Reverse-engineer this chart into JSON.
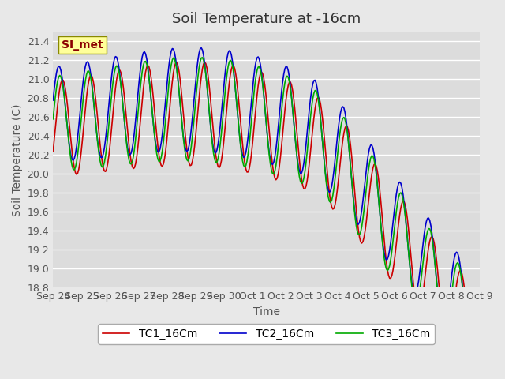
{
  "title": "Soil Temperature at -16cm",
  "xlabel": "Time",
  "ylabel": "Soil Temperature (C)",
  "annotation": "SI_met",
  "ylim": [
    18.8,
    21.5
  ],
  "yticks": [
    18.8,
    19.0,
    19.2,
    19.4,
    19.6,
    19.8,
    20.0,
    20.2,
    20.4,
    20.6,
    20.8,
    21.0,
    21.2,
    21.4
  ],
  "xtick_labels": [
    "Sep 24",
    "Sep 25",
    "Sep 26",
    "Sep 27",
    "Sep 28",
    "Sep 29",
    "Sep 30",
    "Oct 1",
    "Oct 2",
    "Oct 3",
    "Oct 4",
    "Oct 5",
    "Oct 6",
    "Oct 7",
    "Oct 8",
    "Oct 9"
  ],
  "bg_color": "#e8e8e8",
  "plot_bg_color": "#dcdcdc",
  "line_colors": [
    "#cc0000",
    "#0000cc",
    "#00aa00"
  ],
  "legend_labels": [
    "TC1_16Cm",
    "TC2_16Cm",
    "TC3_16Cm"
  ],
  "title_fontsize": 13,
  "axis_label_fontsize": 10,
  "tick_fontsize": 9,
  "legend_fontsize": 10
}
